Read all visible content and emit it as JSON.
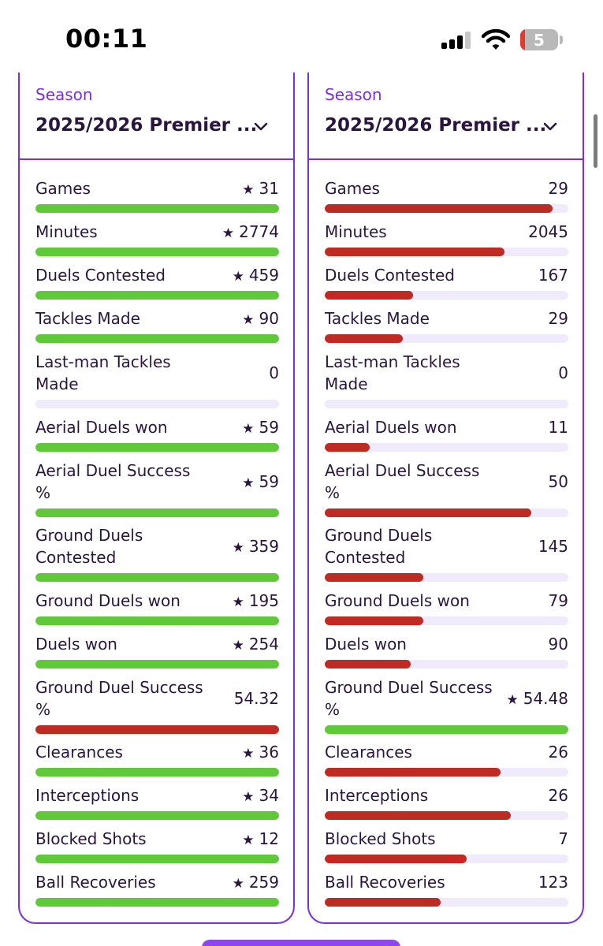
{
  "status_bar": {
    "time": "00:11",
    "battery": "5"
  },
  "colors": {
    "accent": "#7a2fe0",
    "good": "#5fc93a",
    "bad": "#bf2a22",
    "track": "#efeafc"
  },
  "panels": [
    {
      "season_label": "Season",
      "season_value": "2025/2026 Premier ...",
      "stats": [
        {
          "label": "Games",
          "value": "31",
          "star": true,
          "fill": 1.0,
          "status": "good"
        },
        {
          "label": "Minutes",
          "value": "2774",
          "star": true,
          "fill": 1.0,
          "status": "good"
        },
        {
          "label": "Duels Contested",
          "value": "459",
          "star": true,
          "fill": 1.0,
          "status": "good"
        },
        {
          "label": "Tackles Made",
          "value": "90",
          "star": true,
          "fill": 1.0,
          "status": "good"
        },
        {
          "label": "Last-man Tackles Made",
          "value": "0",
          "star": false,
          "fill": 0,
          "status": "good"
        },
        {
          "label": "Aerial Duels won",
          "value": "59",
          "star": true,
          "fill": 1.0,
          "status": "good"
        },
        {
          "label": "Aerial Duel Success %",
          "value": "59",
          "star": true,
          "fill": 1.0,
          "status": "good"
        },
        {
          "label": "Ground Duels Contested",
          "value": "359",
          "star": true,
          "fill": 1.0,
          "status": "good"
        },
        {
          "label": "Ground Duels won",
          "value": "195",
          "star": true,
          "fill": 1.0,
          "status": "good"
        },
        {
          "label": "Duels won",
          "value": "254",
          "star": true,
          "fill": 1.0,
          "status": "good"
        },
        {
          "label": "Ground Duel Success %",
          "value": "54.32",
          "star": false,
          "fill": 1.0,
          "status": "bad"
        },
        {
          "label": "Clearances",
          "value": "36",
          "star": true,
          "fill": 1.0,
          "status": "good"
        },
        {
          "label": "Interceptions",
          "value": "34",
          "star": true,
          "fill": 1.0,
          "status": "good"
        },
        {
          "label": "Blocked Shots",
          "value": "12",
          "star": true,
          "fill": 1.0,
          "status": "good"
        },
        {
          "label": "Ball Recoveries",
          "value": "259",
          "star": true,
          "fill": 1.0,
          "status": "good"
        }
      ]
    },
    {
      "season_label": "Season",
      "season_value": "2025/2026 Premier ...",
      "stats": [
        {
          "label": "Games",
          "value": "29",
          "star": false,
          "fill": 0.935,
          "status": "bad"
        },
        {
          "label": "Minutes",
          "value": "2045",
          "star": false,
          "fill": 0.737,
          "status": "bad"
        },
        {
          "label": "Duels Contested",
          "value": "167",
          "star": false,
          "fill": 0.364,
          "status": "bad"
        },
        {
          "label": "Tackles Made",
          "value": "29",
          "star": false,
          "fill": 0.322,
          "status": "bad"
        },
        {
          "label": "Last-man Tackles Made",
          "value": "0",
          "star": false,
          "fill": 0,
          "status": "bad"
        },
        {
          "label": "Aerial Duels won",
          "value": "11",
          "star": false,
          "fill": 0.186,
          "status": "bad"
        },
        {
          "label": "Aerial Duel Success %",
          "value": "50",
          "star": false,
          "fill": 0.847,
          "status": "bad"
        },
        {
          "label": "Ground Duels Contested",
          "value": "145",
          "star": false,
          "fill": 0.404,
          "status": "bad"
        },
        {
          "label": "Ground Duels won",
          "value": "79",
          "star": false,
          "fill": 0.405,
          "status": "bad"
        },
        {
          "label": "Duels won",
          "value": "90",
          "star": false,
          "fill": 0.354,
          "status": "bad"
        },
        {
          "label": "Ground Duel Success %",
          "value": "54.48",
          "star": true,
          "fill": 1.0,
          "status": "good"
        },
        {
          "label": "Clearances",
          "value": "26",
          "star": false,
          "fill": 0.722,
          "status": "bad"
        },
        {
          "label": "Interceptions",
          "value": "26",
          "star": false,
          "fill": 0.765,
          "status": "bad"
        },
        {
          "label": "Blocked Shots",
          "value": "7",
          "star": false,
          "fill": 0.583,
          "status": "bad"
        },
        {
          "label": "Ball Recoveries",
          "value": "123",
          "star": false,
          "fill": 0.475,
          "status": "bad"
        }
      ]
    }
  ]
}
